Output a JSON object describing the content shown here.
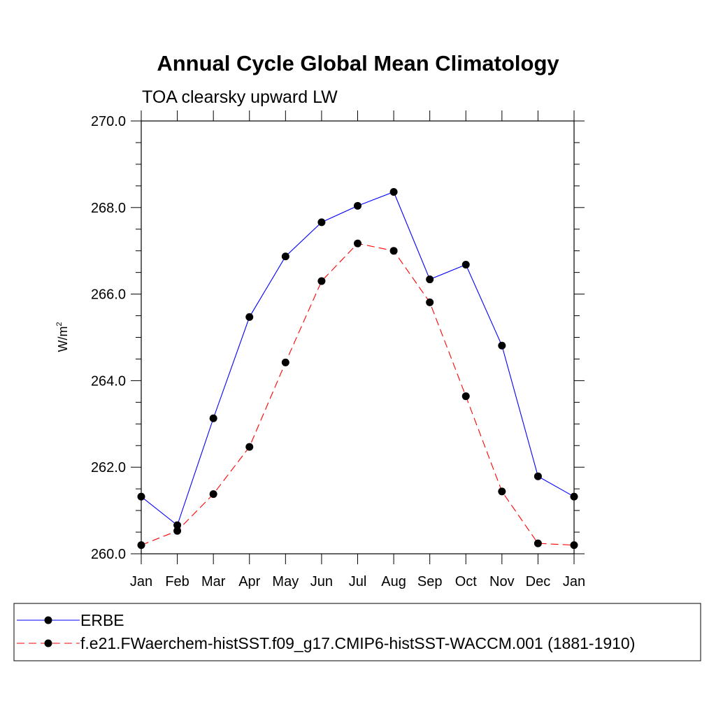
{
  "chart_data": {
    "type": "line",
    "title": "Annual Cycle Global Mean Climatology",
    "subtitle": "TOA clearsky upward LW",
    "ylabel": "W/m",
    "ylabel_sup": "2",
    "xlabel": "",
    "ylim": [
      260.0,
      270.0
    ],
    "yticks": [
      260.0,
      262.0,
      264.0,
      266.0,
      268.0,
      270.0
    ],
    "ytick_labels": [
      "260.0",
      "262.0",
      "264.0",
      "266.0",
      "268.0",
      "270.0"
    ],
    "categories": [
      "Jan",
      "Feb",
      "Mar",
      "Apr",
      "May",
      "Jun",
      "Jul",
      "Aug",
      "Sep",
      "Oct",
      "Nov",
      "Dec",
      "Jan"
    ],
    "series": [
      {
        "name": "ERBE",
        "color": "#0000ff",
        "dash": "solid",
        "values": [
          261.32,
          260.66,
          263.13,
          265.47,
          266.87,
          267.66,
          268.04,
          268.36,
          266.34,
          266.68,
          264.81,
          261.79,
          261.32
        ]
      },
      {
        "name": "f.e21.FWaerchem-histSST.f09_g17.CMIP6-histSST-WACCM.001 (1881-1910)",
        "color": "#ff0000",
        "dash": "dashed",
        "values": [
          260.2,
          260.53,
          261.38,
          262.47,
          264.42,
          266.3,
          267.17,
          267.0,
          265.81,
          263.64,
          261.44,
          260.24,
          260.2
        ]
      }
    ],
    "legend_position": "bottom"
  }
}
